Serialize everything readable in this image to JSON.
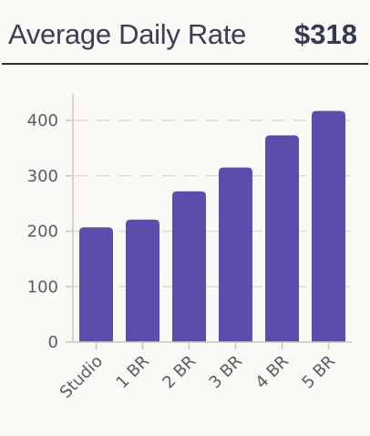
{
  "header": {
    "title": "Average Daily Rate",
    "value": "$318"
  },
  "colors": {
    "bar": "#5c4dad",
    "grid": "#dddbd4",
    "axis": "#c9c6bd",
    "text": "#3a3f55"
  },
  "chart_data": {
    "type": "bar",
    "title": "Average Daily Rate",
    "xlabel": "",
    "ylabel": "",
    "categories": [
      "Studio",
      "1 BR",
      "2 BR",
      "3 BR",
      "4 BR",
      "5 BR"
    ],
    "values": [
      207,
      221,
      272,
      315,
      373,
      417
    ],
    "ylim": [
      0,
      440
    ],
    "yticks": [
      0,
      100,
      200,
      300,
      400
    ],
    "grid": true,
    "legend": "none"
  }
}
